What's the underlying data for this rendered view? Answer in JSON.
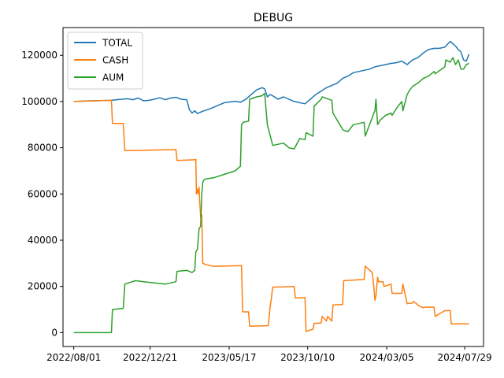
{
  "chart_data": {
    "type": "line",
    "title": "DEBUG",
    "xlabel": "",
    "ylabel": "",
    "x_tick_labels": [
      "2022/08/01",
      "2022/12/21",
      "2023/05/17",
      "2023/10/10",
      "2024/03/05",
      "2024/07/29"
    ],
    "x_tick_days": [
      0,
      142,
      289,
      435,
      582,
      727
    ],
    "xlim": [
      -20,
      762
    ],
    "y_ticks": [
      0,
      20000,
      40000,
      60000,
      80000,
      100000,
      120000
    ],
    "y_tick_labels": [
      "0",
      "20000",
      "40000",
      "60000",
      "80000",
      "100000",
      "120000"
    ],
    "ylim": [
      -6000,
      132000
    ],
    "grid": false,
    "legend_position": "upper left",
    "series": [
      {
        "name": "TOTAL",
        "color": "#1f77b4",
        "x": [
          0,
          30,
          70,
          80,
          90,
          100,
          110,
          120,
          130,
          140,
          150,
          160,
          170,
          180,
          190,
          200,
          210,
          215,
          220,
          225,
          230,
          240,
          250,
          260,
          270,
          280,
          290,
          300,
          310,
          320,
          330,
          340,
          350,
          355,
          360,
          365,
          370,
          380,
          390,
          400,
          410,
          420,
          430,
          440,
          450,
          460,
          470,
          480,
          490,
          500,
          510,
          520,
          530,
          540,
          550,
          560,
          570,
          580,
          590,
          600,
          610,
          620,
          630,
          640,
          650,
          660,
          670,
          680,
          690,
          700,
          705,
          710,
          715,
          720,
          725,
          730,
          735
        ],
        "y": [
          100000,
          100300,
          100500,
          100800,
          101000,
          101200,
          100800,
          101500,
          100300,
          100500,
          101000,
          101600,
          100800,
          101500,
          101800,
          101000,
          100800,
          96500,
          95000,
          96000,
          94800,
          95800,
          96600,
          97500,
          98500,
          99500,
          99800,
          100100,
          99700,
          101000,
          103000,
          105000,
          106000,
          105500,
          102000,
          103000,
          102500,
          101000,
          102000,
          101000,
          100000,
          99500,
          99000,
          101000,
          103000,
          104500,
          106000,
          107000,
          108000,
          110000,
          111000,
          112500,
          113000,
          113500,
          114000,
          115000,
          115500,
          116000,
          116500,
          116800,
          117500,
          116000,
          118000,
          119000,
          121000,
          122500,
          123000,
          123000,
          123500,
          126000,
          125000,
          124000,
          122500,
          121500,
          118000,
          117500,
          120500
        ]
      },
      {
        "name": "CASH",
        "color": "#ff7f0e",
        "x": [
          0,
          70,
          72,
          92,
          95,
          115,
          150,
          190,
          192,
          225,
          227,
          228,
          230,
          231,
          233,
          234,
          236,
          238,
          240,
          245,
          260,
          280,
          312,
          314,
          325,
          327,
          360,
          362,
          365,
          367,
          370,
          390,
          410,
          412,
          430,
          432,
          445,
          447,
          460,
          462,
          470,
          472,
          480,
          482,
          500,
          502,
          540,
          542,
          555,
          558,
          560,
          562,
          565,
          567,
          570,
          572,
          575,
          577,
          590,
          592,
          610,
          612,
          620,
          622,
          630,
          632,
          640,
          642,
          650,
          652,
          670,
          672,
          690,
          692,
          700,
          702,
          710,
          712,
          735
        ],
        "y": [
          100000,
          100500,
          90500,
          90500,
          78800,
          78800,
          79000,
          79200,
          74500,
          74800,
          75000,
          60000,
          62000,
          60200,
          63000,
          58000,
          50000,
          51000,
          30000,
          29500,
          28700,
          28800,
          29000,
          9000,
          9000,
          2800,
          3000,
          3200,
          11000,
          14000,
          19700,
          19800,
          20000,
          15000,
          15200,
          500,
          1500,
          4000,
          4200,
          7000,
          5000,
          7000,
          5000,
          12000,
          12200,
          22500,
          23000,
          28800,
          26000,
          20000,
          14000,
          16000,
          24000,
          22000,
          22000,
          22000,
          22000,
          20000,
          21000,
          17000,
          17000,
          21000,
          12500,
          12600,
          12800,
          13500,
          12000,
          11500,
          10800,
          11000,
          11000,
          7000,
          9500,
          9500,
          9600,
          3800,
          3800,
          3800,
          3800
        ]
      },
      {
        "name": "AUM",
        "color": "#2ca02c",
        "x": [
          0,
          70,
          72,
          92,
          95,
          115,
          130,
          150,
          170,
          190,
          192,
          210,
          220,
          225,
          227,
          230,
          233,
          236,
          238,
          240,
          242,
          245,
          260,
          280,
          300,
          310,
          312,
          315,
          325,
          327,
          340,
          350,
          355,
          360,
          370,
          380,
          390,
          400,
          410,
          420,
          430,
          432,
          445,
          447,
          460,
          462,
          480,
          482,
          500,
          502,
          510,
          520,
          540,
          542,
          555,
          558,
          560,
          562,
          565,
          570,
          580,
          590,
          592,
          600,
          610,
          612,
          620,
          625,
          630,
          640,
          650,
          660,
          670,
          672,
          690,
          692,
          700,
          705,
          710,
          715,
          720,
          725,
          730,
          735
        ],
        "y": [
          0,
          0,
          10000,
          10500,
          21000,
          22500,
          22000,
          21500,
          21000,
          22000,
          26500,
          27000,
          26000,
          27000,
          35000,
          36000,
          45000,
          46000,
          60000,
          65000,
          66000,
          66500,
          67000,
          68500,
          70000,
          72000,
          90000,
          91000,
          91500,
          101000,
          102000,
          102500,
          103500,
          90000,
          81000,
          81500,
          82000,
          80000,
          79500,
          84000,
          83500,
          86500,
          85000,
          98000,
          101000,
          102000,
          100500,
          95000,
          88000,
          87500,
          87000,
          90000,
          91000,
          85000,
          93000,
          95000,
          96000,
          101000,
          90000,
          92000,
          94000,
          95000,
          94000,
          97000,
          100000,
          96000,
          103000,
          105000,
          106500,
          108000,
          110000,
          111000,
          113000,
          112000,
          115000,
          118000,
          117000,
          119000,
          116000,
          118000,
          114000,
          114000,
          116000,
          116500
        ]
      }
    ]
  }
}
